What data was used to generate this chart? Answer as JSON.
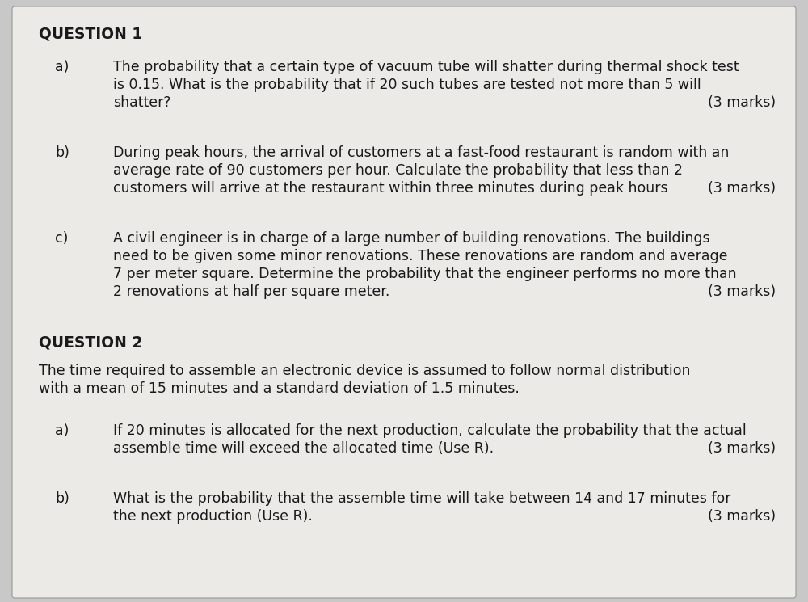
{
  "background_color": "#c8c8c8",
  "paper_color": "#eceae6",
  "text_color": "#1a1a1a",
  "title1": "QUESTION 1",
  "title2": "QUESTION 2",
  "q2_intro_line1": "The time required to assemble an electronic device is assumed to follow normal distribution",
  "q2_intro_line2": "with a mean of 15 minutes and a standard deviation of 1.5 minutes.",
  "questions": [
    {
      "label": "a)",
      "lines": [
        "The probability that a certain type of vacuum tube will shatter during thermal shock test",
        "is 0.15. What is the probability that if 20 such tubes are tested not more than 5 will",
        "shatter?"
      ],
      "marks": "(3 marks)",
      "marks_on_line": 2
    },
    {
      "label": "b)",
      "lines": [
        "During peak hours, the arrival of customers at a fast-food restaurant is random with an",
        "average rate of 90 customers per hour. Calculate the probability that less than 2",
        "customers will arrive at the restaurant within three minutes during peak hours"
      ],
      "marks": "(3 marks)",
      "marks_on_line": 2
    },
    {
      "label": "c)",
      "lines": [
        "A civil engineer is in charge of a large number of building renovations. The buildings",
        "need to be given some minor renovations. These renovations are random and average",
        "7 per meter square. Determine the probability that the engineer performs no more than",
        "2 renovations at half per square meter."
      ],
      "marks": "(3 marks)",
      "marks_on_line": 3
    }
  ],
  "questions2": [
    {
      "label": "a)",
      "lines": [
        "If 20 minutes is allocated for the next production, calculate the probability that the actual",
        "assemble time will exceed the allocated time (Use R)."
      ],
      "marks": "(3 marks)",
      "marks_on_line": 1
    },
    {
      "label": "b)",
      "lines": [
        "What is the probability that the assemble time will take between 14 and 17 minutes for",
        "the next production (Use R)."
      ],
      "marks": "(3 marks)",
      "marks_on_line": 1
    }
  ],
  "font_size_title": 13.5,
  "font_size_body": 12.5,
  "font_size_label": 12.5
}
